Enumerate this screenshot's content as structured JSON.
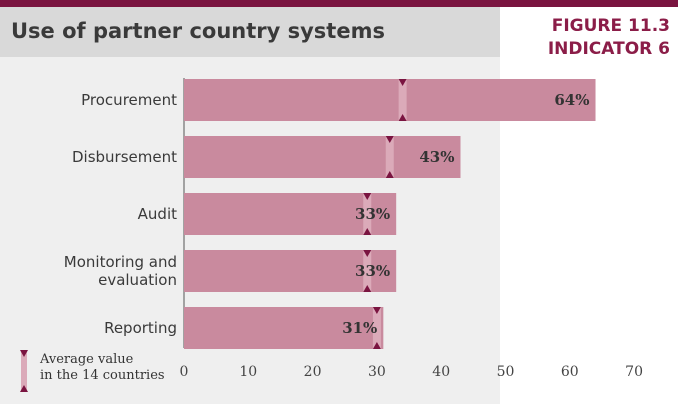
{
  "header": {
    "title": "Use of partner country systems",
    "figure": "FIGURE 11.3",
    "indicator": "INDICATOR 6"
  },
  "legend": {
    "line1": "Average value",
    "line2": "in the 14 countries"
  },
  "colors": {
    "brand": "#7a1440",
    "bar": "#c98a9e",
    "marker_band": "#dbaab9",
    "marker_triangle": "#7a1440"
  },
  "chart_data": {
    "type": "bar",
    "orientation": "horizontal",
    "categories": [
      [
        "Procurement"
      ],
      [
        "Disbursement"
      ],
      [
        "Audit"
      ],
      [
        "Monitoring and",
        "evaluation"
      ],
      [
        "Reporting"
      ]
    ],
    "values": [
      64,
      43,
      33,
      33,
      31
    ],
    "value_labels": [
      "64%",
      "43%",
      "33%",
      "33%",
      "31%"
    ],
    "average_markers": [
      34,
      32,
      28.5,
      28.5,
      30
    ],
    "xlim": [
      0,
      70
    ],
    "xticks": [
      0,
      10,
      20,
      30,
      40,
      50,
      60,
      70
    ],
    "legend": "Average value in the 14 countries"
  }
}
